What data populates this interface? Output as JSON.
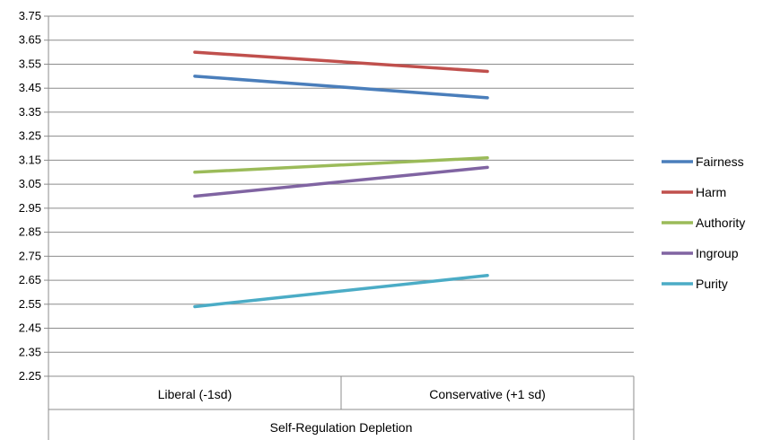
{
  "chart_data": {
    "type": "line",
    "title": "",
    "xlabel": "Self-Regulation Depletion",
    "ylabel": "",
    "categories": [
      "Liberal (-1sd)",
      "Conservative (+1 sd)"
    ],
    "ylim": [
      2.25,
      3.75
    ],
    "yticks": [
      "3.75",
      "3.65",
      "3.55",
      "3.45",
      "3.35",
      "3.25",
      "3.15",
      "3.05",
      "2.95",
      "2.85",
      "2.75",
      "2.65",
      "2.55",
      "2.45",
      "2.35",
      "2.25"
    ],
    "grid": true,
    "legend_position": "right",
    "series": [
      {
        "name": "Fairness",
        "color": "#4a7ebb",
        "values": [
          3.5,
          3.41
        ]
      },
      {
        "name": "Harm",
        "color": "#c0504d",
        "values": [
          3.6,
          3.52
        ]
      },
      {
        "name": "Authority",
        "color": "#9bbb59",
        "values": [
          3.1,
          3.16
        ]
      },
      {
        "name": "Ingroup",
        "color": "#8064a2",
        "values": [
          3.0,
          3.12
        ]
      },
      {
        "name": "Purity",
        "color": "#4bacc6",
        "values": [
          2.54,
          2.67
        ]
      }
    ]
  }
}
